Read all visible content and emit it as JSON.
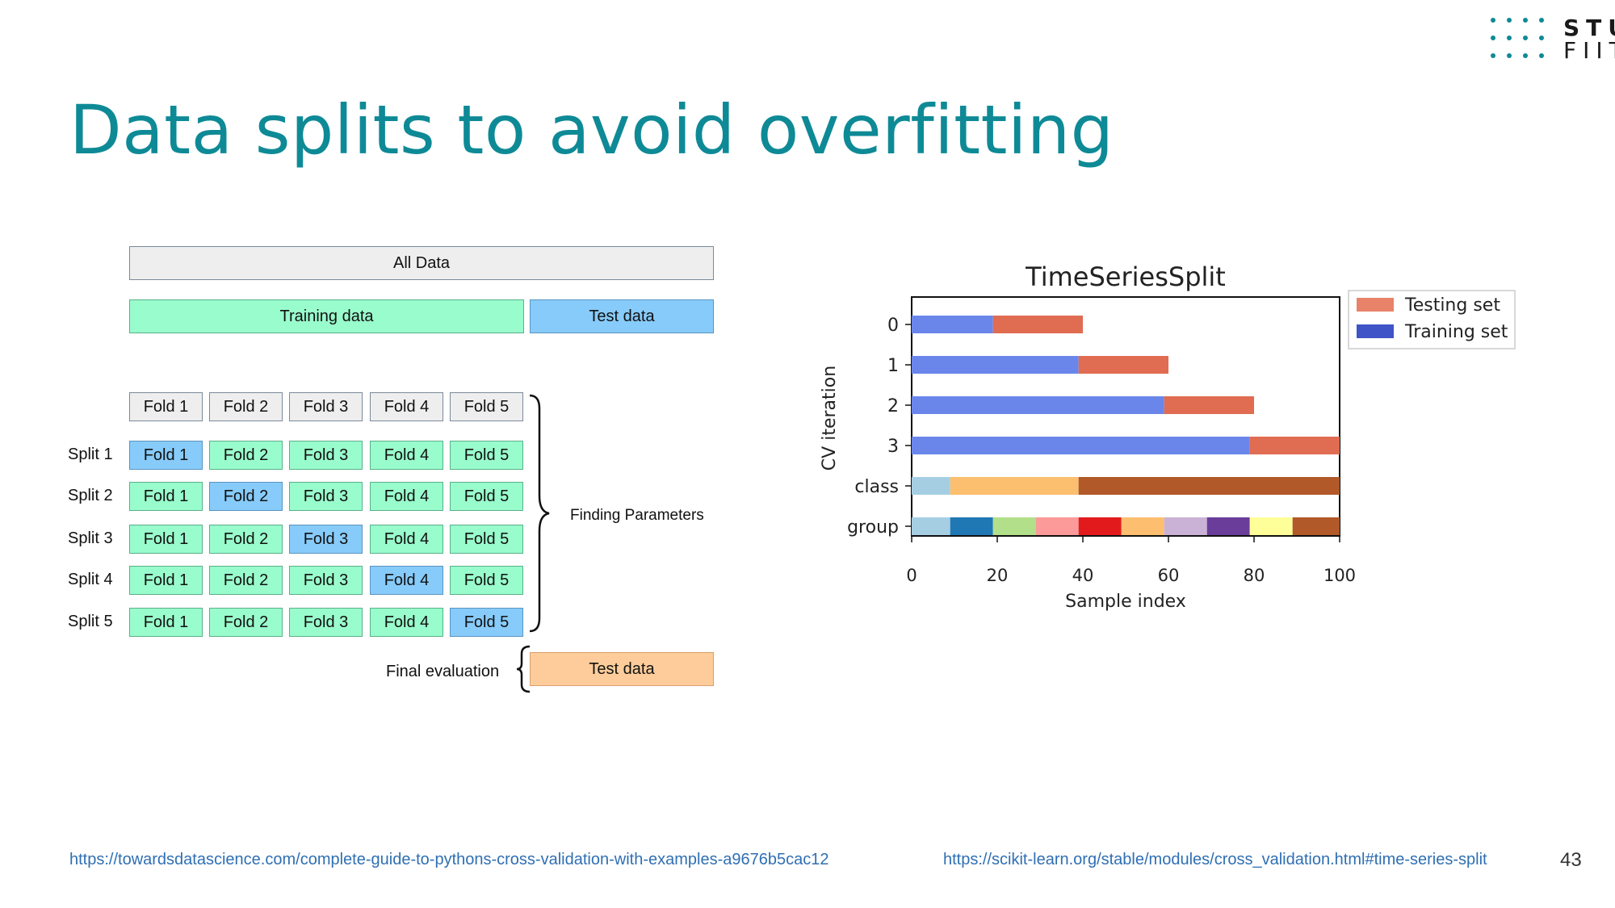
{
  "slide": {
    "title": "Data splits to avoid overfitting",
    "page_number": "43"
  },
  "logo": {
    "line1": "STU",
    "line2": "FIIT"
  },
  "cv_diagram": {
    "all_data": "All Data",
    "training_data": "Training data",
    "test_data": "Test data",
    "folds": [
      "Fold 1",
      "Fold 2",
      "Fold 3",
      "Fold 4",
      "Fold 5"
    ],
    "splits": [
      "Split 1",
      "Split 2",
      "Split 3",
      "Split 4",
      "Split 5"
    ],
    "finding_parameters": "Finding Parameters",
    "final_evaluation": "Final evaluation",
    "final_test_data": "Test data",
    "colors": {
      "gray": "#eeeeee",
      "green": "#99fccc",
      "blue": "#87cbfa",
      "orange": "#fdcc9a"
    }
  },
  "chart_data": {
    "type": "bar",
    "title": "TimeSeriesSplit",
    "xlabel": "Sample index",
    "ylabel": "CV iteration",
    "xlim": [
      0,
      100
    ],
    "xticks": [
      "0",
      "20",
      "40",
      "60",
      "80",
      "100"
    ],
    "yticks": [
      "0",
      "1",
      "2",
      "3",
      "class",
      "group"
    ],
    "legend": {
      "position": "outside-top-right",
      "entries": [
        {
          "name": "Testing set",
          "color": "#e8836a"
        },
        {
          "name": "Training set",
          "color": "#3f54c7"
        }
      ]
    },
    "cv_iterations": [
      {
        "label": "0",
        "train": [
          0,
          19
        ],
        "test": [
          19,
          40
        ]
      },
      {
        "label": "1",
        "train": [
          0,
          39
        ],
        "test": [
          39,
          60
        ]
      },
      {
        "label": "2",
        "train": [
          0,
          59
        ],
        "test": [
          59,
          80
        ]
      },
      {
        "label": "3",
        "train": [
          0,
          79
        ],
        "test": [
          79,
          100
        ]
      }
    ],
    "train_color": "#6a86ea",
    "test_color": "#e06c52",
    "class_row": [
      {
        "from": 0,
        "to": 9,
        "color": "#a6cee3"
      },
      {
        "from": 9,
        "to": 39,
        "color": "#fbbf6f"
      },
      {
        "from": 39,
        "to": 100,
        "color": "#b15928"
      }
    ],
    "group_row": [
      {
        "from": 0,
        "to": 9,
        "color": "#a6cee3"
      },
      {
        "from": 9,
        "to": 19,
        "color": "#1f78b4"
      },
      {
        "from": 19,
        "to": 29,
        "color": "#b2df8a"
      },
      {
        "from": 29,
        "to": 39,
        "color": "#fb9a99"
      },
      {
        "from": 39,
        "to": 49,
        "color": "#e31a1c"
      },
      {
        "from": 49,
        "to": 59,
        "color": "#fdbf6f"
      },
      {
        "from": 59,
        "to": 69,
        "color": "#cab2d6"
      },
      {
        "from": 69,
        "to": 79,
        "color": "#6a3d9a"
      },
      {
        "from": 79,
        "to": 89,
        "color": "#ffff99"
      },
      {
        "from": 89,
        "to": 100,
        "color": "#b15928"
      }
    ]
  },
  "footer": {
    "link_left": "https://towardsdatascience.com/complete-guide-to-pythons-cross-validation-with-examples-a9676b5cac12",
    "link_right": "https://scikit-learn.org/stable/modules/cross_validation.html#time-series-split"
  }
}
